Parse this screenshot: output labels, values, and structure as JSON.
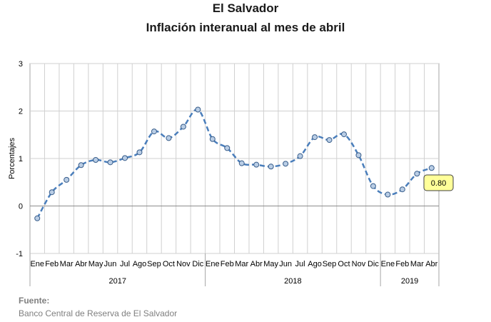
{
  "header": {
    "title": "El Salvador",
    "subtitle": "Inflación interanual al mes de abril"
  },
  "footer": {
    "source_label": "Fuente:",
    "source_text": "Banco Central de Reserva de El Salvador"
  },
  "chart_data": {
    "type": "line",
    "title": "El Salvador",
    "subtitle": "Inflación interanual al mes de abril",
    "xlabel": "",
    "ylabel": "Porcentajes",
    "ylim": [
      -1,
      3
    ],
    "yticks": [
      -1,
      0,
      1,
      2,
      3
    ],
    "grid": true,
    "legend": "none",
    "categories": [
      "Ene",
      "Feb",
      "Mar",
      "Abr",
      "May",
      "Jun",
      "Jul",
      "Ago",
      "Sep",
      "Oct",
      "Nov",
      "Dic",
      "Ene",
      "Feb",
      "Mar",
      "Abr",
      "May",
      "Jun",
      "Jul",
      "Ago",
      "Sep",
      "Oct",
      "Nov",
      "Dic",
      "Ene",
      "Feb",
      "Mar",
      "Abr"
    ],
    "year_groups": [
      {
        "label": "2017",
        "count": 12
      },
      {
        "label": "2018",
        "count": 12
      },
      {
        "label": "2019",
        "count": 4
      }
    ],
    "series": [
      {
        "values": [
          -0.26,
          0.29,
          0.55,
          0.86,
          0.97,
          0.92,
          1.01,
          1.13,
          1.57,
          1.43,
          1.67,
          2.03,
          1.41,
          1.22,
          0.9,
          0.87,
          0.83,
          0.89,
          1.05,
          1.45,
          1.39,
          1.51,
          1.07,
          0.42,
          0.24,
          0.35,
          0.68,
          0.8
        ],
        "color": "#4a7ebb"
      }
    ],
    "callout": {
      "label": "0.80"
    }
  }
}
